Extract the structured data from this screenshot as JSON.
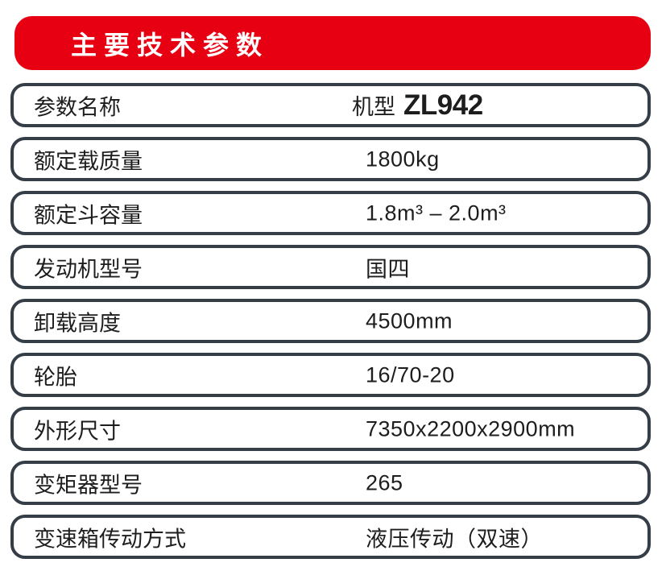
{
  "colors": {
    "accent_red": "#e60012",
    "row_border": "#353d47",
    "text": "#1d1d1d",
    "banner_text": "#ffffff"
  },
  "header": {
    "title": "主要技术参数"
  },
  "table": {
    "model_row": {
      "label": "参数名称",
      "value_prefix": "机型",
      "model": "ZL942"
    },
    "rows": [
      {
        "label": "额定载质量",
        "value": "1800kg"
      },
      {
        "label": "额定斗容量",
        "value": "1.8m³ – 2.0m³"
      },
      {
        "label": "发动机型号",
        "value": "国四"
      },
      {
        "label": "卸载高度",
        "value": "4500mm"
      },
      {
        "label": "轮胎",
        "value": "16/70-20"
      },
      {
        "label": "外形尺寸",
        "value": "7350x2200x2900mm"
      },
      {
        "label": "变矩器型号",
        "value": "265"
      },
      {
        "label": "变速箱传动方式",
        "value": "液压传动（双速）"
      }
    ]
  }
}
